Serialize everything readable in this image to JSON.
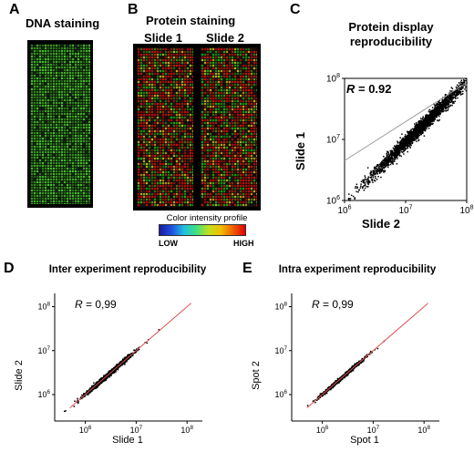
{
  "panels": {
    "A": {
      "letter": "A",
      "title": "DNA staining"
    },
    "B": {
      "letter": "B",
      "title": "Protein staining",
      "slide_headers": [
        "Slide 1",
        "Slide 2"
      ],
      "colorbar": {
        "title": "Color intensity profile",
        "low": "LOW",
        "high": "HIGH"
      }
    },
    "C": {
      "letter": "C"
    },
    "D": {
      "letter": "D"
    },
    "E": {
      "letter": "E"
    }
  },
  "chart_data": [
    {
      "type": "scatter",
      "panel": "C",
      "title": "Protein display reproducibility",
      "xlabel": "Slide 2",
      "ylabel": "Slide 1",
      "log_scale": true,
      "xlim": [
        1000000,
        100000000
      ],
      "ylim": [
        1000000,
        100000000
      ],
      "xticks": [
        {
          "value": 1000000,
          "base": "10",
          "exp": "6"
        },
        {
          "value": 10000000,
          "base": "10",
          "exp": "7"
        },
        {
          "value": 100000000,
          "base": "10",
          "exp": "8"
        }
      ],
      "yticks": [
        {
          "value": 1000000,
          "base": "10",
          "exp": "6"
        },
        {
          "value": 10000000,
          "base": "10",
          "exp": "7"
        },
        {
          "value": 100000000,
          "base": "10",
          "exp": "8"
        }
      ],
      "annotation": {
        "label": "R",
        "text": " = 0.92"
      },
      "fit_line": {
        "color": "#999999",
        "x": [
          1000000,
          100000000
        ],
        "y": [
          4500000,
          85000000
        ]
      },
      "points_summary": {
        "count": 2500,
        "center_log10": [
          7.2,
          7.15
        ],
        "spread_log10": 0.28,
        "point_color": "#000000"
      }
    },
    {
      "type": "scatter",
      "panel": "D",
      "title": "Inter experiment reproducibility",
      "xlabel": "Slide 1",
      "ylabel": "Slide 2",
      "log_scale": true,
      "xlim": [
        250000,
        200000000
      ],
      "ylim": [
        250000,
        200000000
      ],
      "xticks": [
        {
          "value": 1000000,
          "base": "10",
          "exp": "6"
        },
        {
          "value": 10000000,
          "base": "10",
          "exp": "7"
        },
        {
          "value": 100000000,
          "base": "10",
          "exp": "8"
        }
      ],
      "yticks": [
        {
          "value": 1000000,
          "base": "10",
          "exp": "6"
        },
        {
          "value": 10000000,
          "base": "10",
          "exp": "7"
        },
        {
          "value": 100000000,
          "base": "10",
          "exp": "8"
        }
      ],
      "annotation": {
        "label": "R",
        "text": " = 0,99"
      },
      "fit_line": {
        "color": "#e05050",
        "x": [
          500000,
          120000000
        ],
        "y": [
          500000,
          120000000
        ]
      },
      "points_summary": {
        "count": 1200,
        "center_log10": [
          6.45,
          6.45
        ],
        "spread_log10": 0.18,
        "point_color": "#000000"
      }
    },
    {
      "type": "scatter",
      "panel": "E",
      "title": "Intra experiment reproducibility",
      "xlabel": "Spot 1",
      "ylabel": "Spot 2",
      "log_scale": true,
      "xlim": [
        250000,
        200000000
      ],
      "ylim": [
        250000,
        200000000
      ],
      "xticks": [
        {
          "value": 1000000,
          "base": "10",
          "exp": "6"
        },
        {
          "value": 10000000,
          "base": "10",
          "exp": "7"
        },
        {
          "value": 100000000,
          "base": "10",
          "exp": "8"
        }
      ],
      "yticks": [
        {
          "value": 1000000,
          "base": "10",
          "exp": "6"
        },
        {
          "value": 10000000,
          "base": "10",
          "exp": "7"
        },
        {
          "value": 100000000,
          "base": "10",
          "exp": "8"
        }
      ],
      "annotation": {
        "label": "R",
        "text": " = 0,99"
      },
      "fit_line": {
        "color": "#e05050",
        "x": [
          500000,
          120000000
        ],
        "y": [
          500000,
          120000000
        ]
      },
      "points_summary": {
        "count": 1000,
        "center_log10": [
          6.4,
          6.4
        ],
        "spread_log10": 0.16,
        "point_color": "#000000"
      }
    }
  ]
}
